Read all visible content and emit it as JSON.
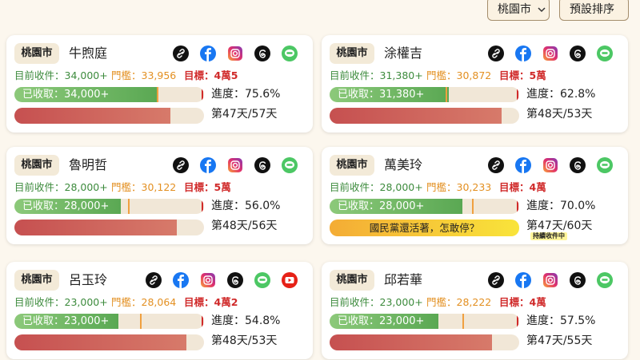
{
  "toolbar": {
    "city_select": "桃園市",
    "sort_button": "預設排序"
  },
  "labels": {
    "current": "目前收件：",
    "threshold": "門檻：",
    "target": "目標：",
    "collected": "已收取：",
    "progress": "進度："
  },
  "cards": [
    {
      "city": "桃園市",
      "name": "牛煦庭",
      "collected": {
        "value": 34000,
        "label": "34,000+"
      },
      "threshold": {
        "value": 33956,
        "label": "33,956"
      },
      "target": {
        "value": 45000,
        "label": "4萬5"
      },
      "progress": {
        "value": 75.6,
        "label": "75.6%"
      },
      "days": {
        "value": 47,
        "total": 57,
        "label": "第47天/57天"
      }
    },
    {
      "city": "桃園市",
      "name": "涂權吉",
      "collected": {
        "value": 31380,
        "label": "31,380+"
      },
      "threshold": {
        "value": 30872,
        "label": "30,872"
      },
      "target": {
        "value": 50000,
        "label": "5萬"
      },
      "progress": {
        "value": 62.8,
        "label": "62.8%"
      },
      "days": {
        "value": 48,
        "total": 53,
        "label": "第48天/53天"
      }
    },
    {
      "city": "桃園市",
      "name": "魯明哲",
      "collected": {
        "value": 28000,
        "label": "28,000+"
      },
      "threshold": {
        "value": 30122,
        "label": "30,122"
      },
      "target": {
        "value": 50000,
        "label": "5萬"
      },
      "progress": {
        "value": 56.0,
        "label": "56.0%"
      },
      "days": {
        "value": 48,
        "total": 56,
        "label": "第48天/56天"
      }
    },
    {
      "city": "桃園市",
      "name": "萬美玲",
      "collected": {
        "value": 28000,
        "label": "28,000+"
      },
      "threshold": {
        "value": 30233,
        "label": "30,233"
      },
      "target": {
        "value": 40000,
        "label": "4萬"
      },
      "progress": {
        "value": 70.0,
        "label": "70.0%"
      },
      "days": {
        "value": 47,
        "total": 60,
        "label": "第47天/60天"
      },
      "banner": "國民黨還活著，怎敢停？",
      "status_tag": "持續收件中"
    },
    {
      "city": "桃園市",
      "name": "呂玉玲",
      "collected": {
        "value": 23000,
        "label": "23,000+"
      },
      "threshold": {
        "value": 28064,
        "label": "28,064"
      },
      "target": {
        "value": 42000,
        "label": "4萬2"
      },
      "progress": {
        "value": 54.8,
        "label": "54.8%"
      },
      "days": {
        "value": 48,
        "total": 53,
        "label": "第48天/53天"
      }
    },
    {
      "city": "桃園市",
      "name": "邱若華",
      "collected": {
        "value": 23000,
        "label": "23,000+"
      },
      "threshold": {
        "value": 28222,
        "label": "28,222"
      },
      "target": {
        "value": 40000,
        "label": "4萬"
      },
      "progress": {
        "value": 57.5,
        "label": "57.5%"
      },
      "days": {
        "value": 47,
        "total": 55,
        "label": "第47天/55天"
      }
    }
  ]
}
